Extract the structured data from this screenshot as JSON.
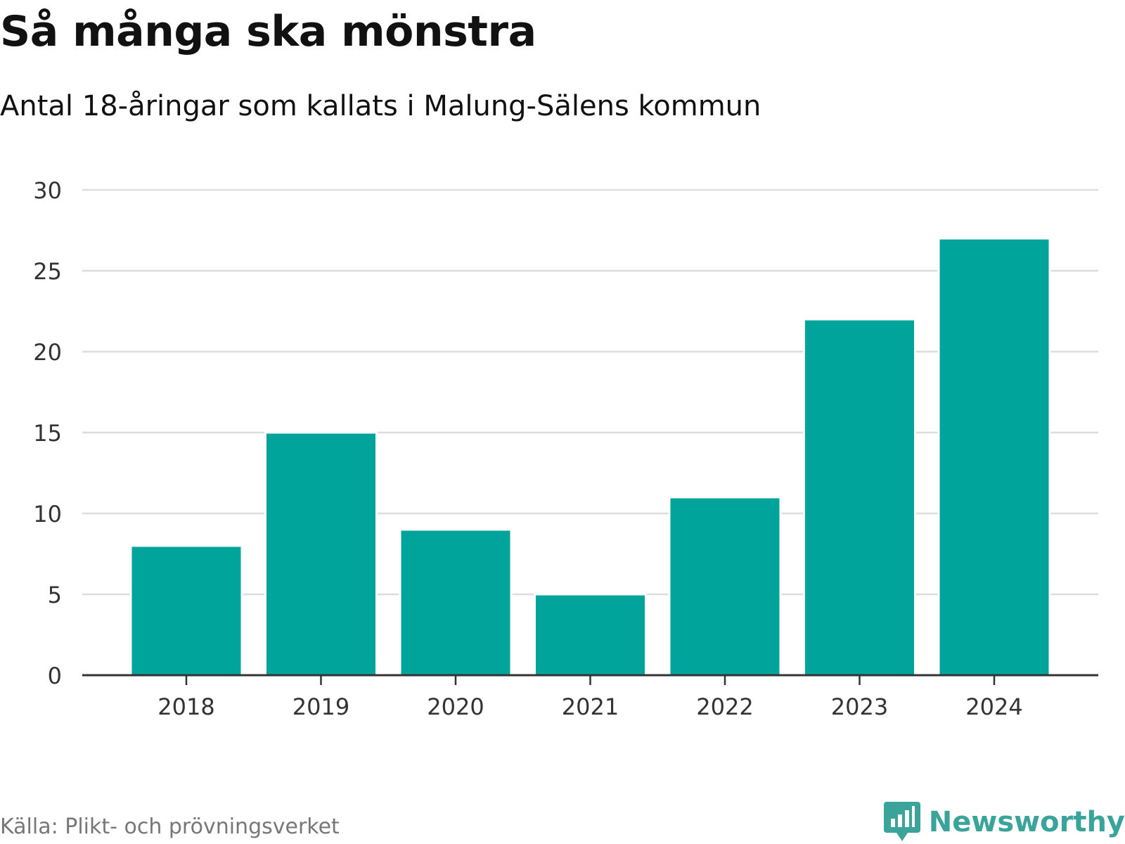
{
  "header": {
    "title": "Så många ska mönstra",
    "subtitle": "Antal 18-åringar som kallats i Malung-Sälens kommun"
  },
  "footer": {
    "source": "Källa: Plikt- och prövningsverket",
    "brand": "Newsworthy",
    "brand_icon": "bar-chart-bubble-icon"
  },
  "colors": {
    "bar": "#00a49a",
    "grid": "#dddddd",
    "axis": "#333333",
    "brand": "#3aa39a"
  },
  "chart_data": {
    "type": "bar",
    "title": "Så många ska mönstra",
    "subtitle": "Antal 18-åringar som kallats i Malung-Sälens kommun",
    "categories": [
      "2018",
      "2019",
      "2020",
      "2021",
      "2022",
      "2023",
      "2024"
    ],
    "values": [
      8,
      15,
      9,
      5,
      11,
      22,
      27
    ],
    "yticks": [
      "0",
      "5",
      "10",
      "15",
      "20",
      "25",
      "30"
    ],
    "ylim": [
      0,
      30
    ],
    "xlabel": "",
    "ylabel": "",
    "grid": true,
    "legend": "none"
  }
}
